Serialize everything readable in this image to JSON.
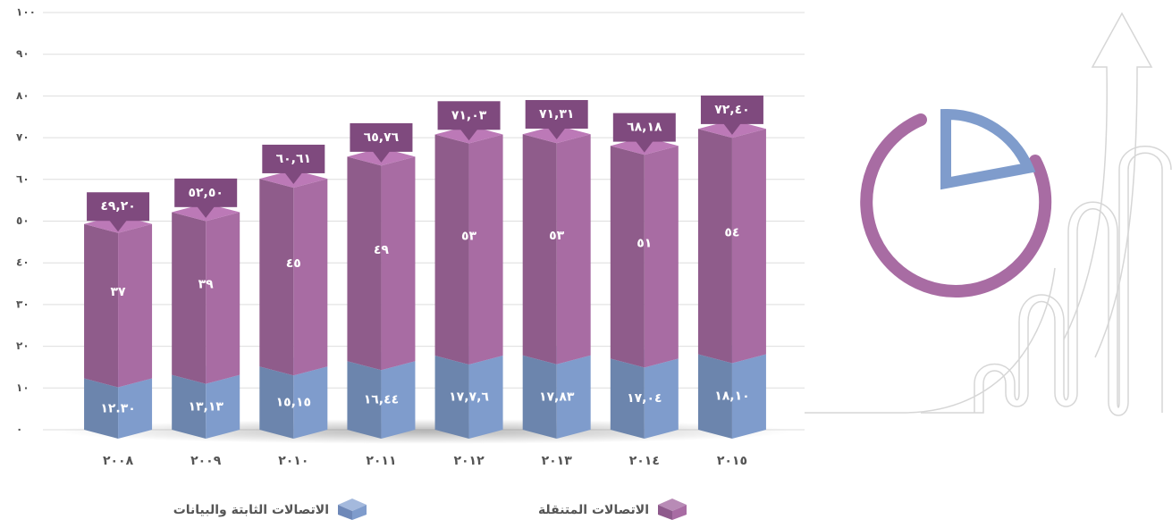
{
  "chart_data": {
    "type": "bar",
    "categories": [
      "٢٠٠٨",
      "٢٠٠٩",
      "٢٠١٠",
      "٢٠١١",
      "٢٠١٢",
      "٢٠١٣",
      "٢٠١٤",
      "٢٠١٥"
    ],
    "series": [
      {
        "name": "الاتصالات الثابتة والبيانات",
        "color": "#7f9ccc",
        "values": [
          12.3,
          13.13,
          15.15,
          16.44,
          17.76,
          17.83,
          17.04,
          18.1
        ],
        "value_labels": [
          "١٢.٣٠",
          "١٣,١٣",
          "١٥,١٥",
          "١٦,٤٤",
          "١٧,٧,٦",
          "١٧,٨٣",
          "١٧,٠٤",
          "١٨,١٠"
        ]
      },
      {
        "name": "الاتصالات المتنقلة",
        "color": "#a86ca3",
        "values": [
          37,
          39,
          45,
          49,
          53,
          53,
          51,
          54
        ],
        "value_labels": [
          "٣٧",
          "٣٩",
          "٤٥",
          "٤٩",
          "٥٣",
          "٥٣",
          "٥١",
          "٥٤"
        ]
      }
    ],
    "totals": {
      "values": [
        49.2,
        52.5,
        60.61,
        65.76,
        71.03,
        71.31,
        68.18,
        72.4
      ],
      "labels": [
        "٤٩,٢٠",
        "٥٢,٥٠",
        "٦٠,٦١",
        "٦٥,٧٦",
        "٧١,٠٣",
        "٧١,٣١",
        "٦٨,١٨",
        "٧٢,٤٠"
      ]
    },
    "ylim": [
      0,
      100
    ],
    "yticks": [
      {
        "value": 0,
        "label": "٠"
      },
      {
        "value": 10,
        "label": "١٠"
      },
      {
        "value": 20,
        "label": "٢٠"
      },
      {
        "value": 30,
        "label": "٣٠"
      },
      {
        "value": 40,
        "label": "٤٠"
      },
      {
        "value": 50,
        "label": "٥٠"
      },
      {
        "value": 60,
        "label": "٦٠"
      },
      {
        "value": 70,
        "label": "٧٠"
      },
      {
        "value": 80,
        "label": "٨٠"
      },
      {
        "value": 90,
        "label": "٩٠"
      },
      {
        "value": 100,
        "label": "١٠٠"
      }
    ],
    "grid": true,
    "stacked": true
  }
}
